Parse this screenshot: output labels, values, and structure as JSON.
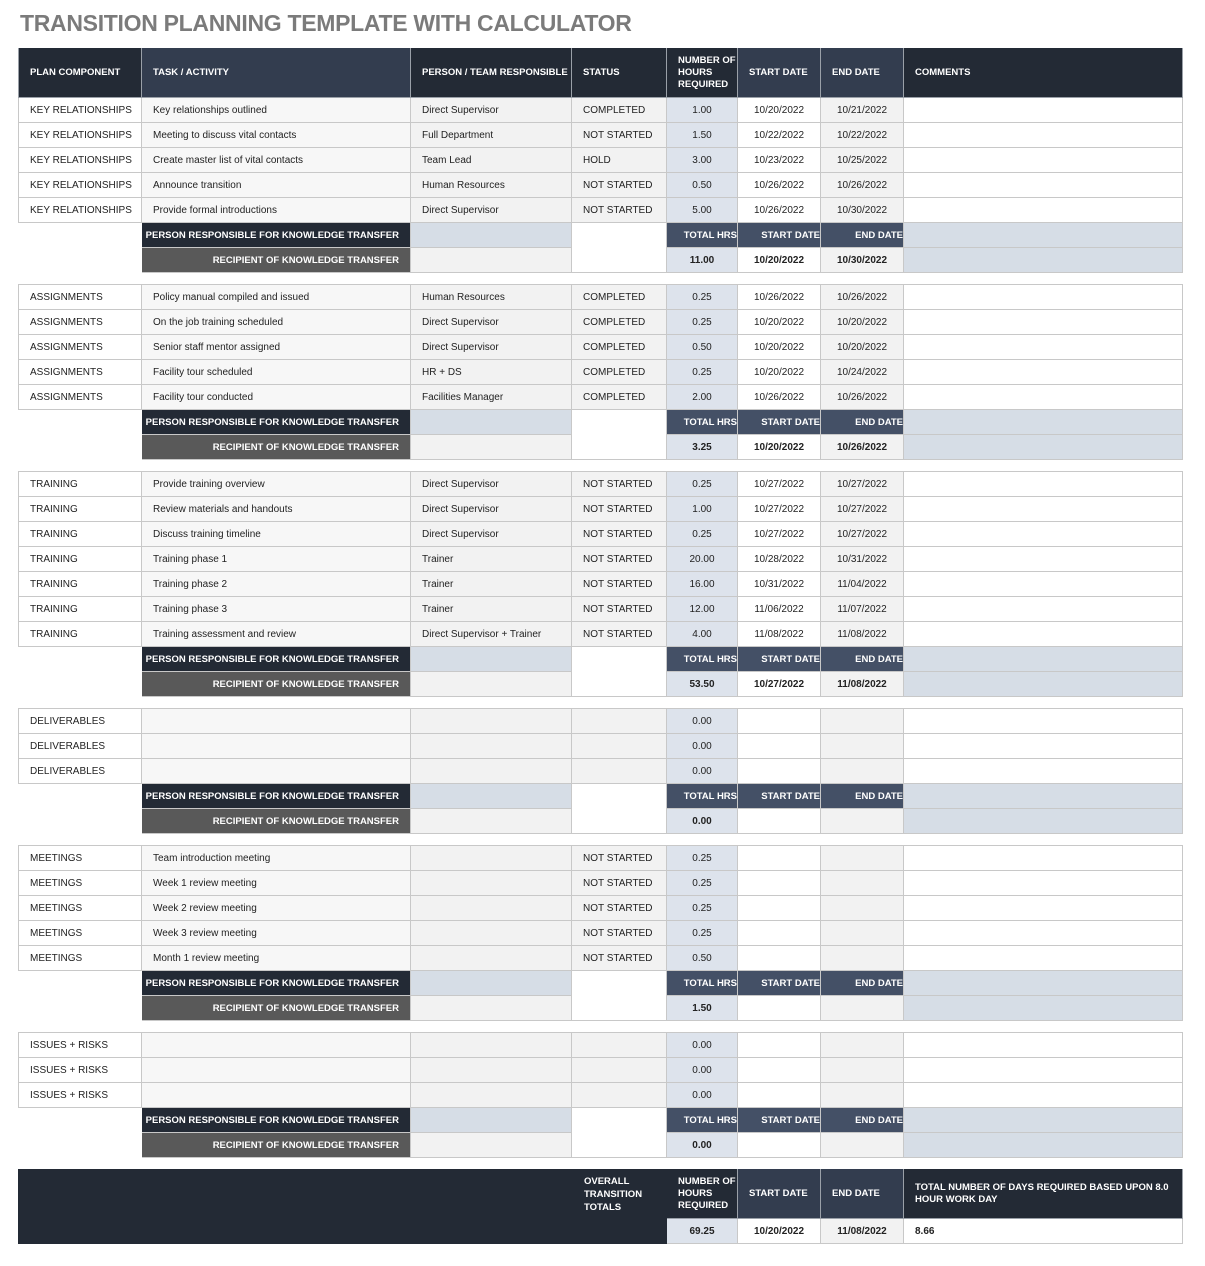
{
  "title": "TRANSITION PLANNING TEMPLATE WITH CALCULATOR",
  "headers": [
    "PLAN COMPONENT",
    "TASK / ACTIVITY",
    "PERSON / TEAM RESPONSIBLE",
    "STATUS",
    "NUMBER OF HOURS REQUIRED",
    "START DATE",
    "END DATE",
    "COMMENTS"
  ],
  "summary_labels": {
    "person": "PERSON RESPONSIBLE FOR KNOWLEDGE TRANSFER",
    "recipient": "RECIPIENT OF KNOWLEDGE TRANSFER",
    "total_hrs": "TOTAL HRS",
    "start": "START DATE",
    "end": "END DATE"
  },
  "sections": [
    {
      "rows": [
        [
          "KEY RELATIONSHIPS",
          "Key relationships outlined",
          "Direct Supervisor",
          "COMPLETED",
          "1.00",
          "10/20/2022",
          "10/21/2022",
          ""
        ],
        [
          "KEY RELATIONSHIPS",
          "Meeting to discuss vital contacts",
          "Full Department",
          "NOT STARTED",
          "1.50",
          "10/22/2022",
          "10/22/2022",
          ""
        ],
        [
          "KEY RELATIONSHIPS",
          "Create master list of vital contacts",
          "Team Lead",
          "HOLD",
          "3.00",
          "10/23/2022",
          "10/25/2022",
          ""
        ],
        [
          "KEY RELATIONSHIPS",
          "Announce transition",
          "Human Resources",
          "NOT STARTED",
          "0.50",
          "10/26/2022",
          "10/26/2022",
          ""
        ],
        [
          "KEY RELATIONSHIPS",
          "Provide formal introductions",
          "Direct Supervisor",
          "NOT STARTED",
          "5.00",
          "10/26/2022",
          "10/30/2022",
          ""
        ]
      ],
      "total": {
        "hours": "11.00",
        "start": "10/20/2022",
        "end": "10/30/2022"
      }
    },
    {
      "rows": [
        [
          "ASSIGNMENTS",
          "Policy manual compiled and issued",
          "Human Resources",
          "COMPLETED",
          "0.25",
          "10/26/2022",
          "10/26/2022",
          ""
        ],
        [
          "ASSIGNMENTS",
          "On the job training scheduled",
          "Direct Supervisor",
          "COMPLETED",
          "0.25",
          "10/20/2022",
          "10/20/2022",
          ""
        ],
        [
          "ASSIGNMENTS",
          "Senior staff mentor assigned",
          "Direct Supervisor",
          "COMPLETED",
          "0.50",
          "10/20/2022",
          "10/20/2022",
          ""
        ],
        [
          "ASSIGNMENTS",
          "Facility tour scheduled",
          "HR + DS",
          "COMPLETED",
          "0.25",
          "10/20/2022",
          "10/24/2022",
          ""
        ],
        [
          "ASSIGNMENTS",
          "Facility tour conducted",
          "Facilities Manager",
          "COMPLETED",
          "2.00",
          "10/26/2022",
          "10/26/2022",
          ""
        ]
      ],
      "total": {
        "hours": "3.25",
        "start": "10/20/2022",
        "end": "10/26/2022"
      }
    },
    {
      "rows": [
        [
          "TRAINING",
          "Provide training overview",
          "Direct Supervisor",
          "NOT STARTED",
          "0.25",
          "10/27/2022",
          "10/27/2022",
          ""
        ],
        [
          "TRAINING",
          "Review materials and handouts",
          "Direct Supervisor",
          "NOT STARTED",
          "1.00",
          "10/27/2022",
          "10/27/2022",
          ""
        ],
        [
          "TRAINING",
          "Discuss training timeline",
          "Direct Supervisor",
          "NOT STARTED",
          "0.25",
          "10/27/2022",
          "10/27/2022",
          ""
        ],
        [
          "TRAINING",
          "Training phase 1",
          "Trainer",
          "NOT STARTED",
          "20.00",
          "10/28/2022",
          "10/31/2022",
          ""
        ],
        [
          "TRAINING",
          "Training phase 2",
          "Trainer",
          "NOT STARTED",
          "16.00",
          "10/31/2022",
          "11/04/2022",
          ""
        ],
        [
          "TRAINING",
          "Training phase 3",
          "Trainer",
          "NOT STARTED",
          "12.00",
          "11/06/2022",
          "11/07/2022",
          ""
        ],
        [
          "TRAINING",
          "Training assessment and review",
          "Direct Supervisor + Trainer",
          "NOT STARTED",
          "4.00",
          "11/08/2022",
          "11/08/2022",
          ""
        ]
      ],
      "total": {
        "hours": "53.50",
        "start": "10/27/2022",
        "end": "11/08/2022"
      }
    },
    {
      "rows": [
        [
          "DELIVERABLES",
          "",
          "",
          "",
          "0.00",
          "",
          "",
          ""
        ],
        [
          "DELIVERABLES",
          "",
          "",
          "",
          "0.00",
          "",
          "",
          ""
        ],
        [
          "DELIVERABLES",
          "",
          "",
          "",
          "0.00",
          "",
          "",
          ""
        ]
      ],
      "total": {
        "hours": "0.00",
        "start": "",
        "end": ""
      }
    },
    {
      "rows": [
        [
          "MEETINGS",
          "Team introduction meeting",
          "",
          "NOT STARTED",
          "0.25",
          "",
          "",
          ""
        ],
        [
          "MEETINGS",
          "Week 1 review meeting",
          "",
          "NOT STARTED",
          "0.25",
          "",
          "",
          ""
        ],
        [
          "MEETINGS",
          "Week 2 review meeting",
          "",
          "NOT STARTED",
          "0.25",
          "",
          "",
          ""
        ],
        [
          "MEETINGS",
          "Week 3 review meeting",
          "",
          "NOT STARTED",
          "0.25",
          "",
          "",
          ""
        ],
        [
          "MEETINGS",
          "Month 1 review meeting",
          "",
          "NOT STARTED",
          "0.50",
          "",
          "",
          ""
        ]
      ],
      "total": {
        "hours": "1.50",
        "start": "",
        "end": ""
      }
    },
    {
      "rows": [
        [
          "ISSUES + RISKS",
          "",
          "",
          "",
          "0.00",
          "",
          "",
          ""
        ],
        [
          "ISSUES + RISKS",
          "",
          "",
          "",
          "0.00",
          "",
          "",
          ""
        ],
        [
          "ISSUES + RISKS",
          "",
          "",
          "",
          "0.00",
          "",
          "",
          ""
        ]
      ],
      "total": {
        "hours": "0.00",
        "start": "",
        "end": ""
      }
    }
  ],
  "overall": {
    "label": "OVERALL TRANSITION TOTALS",
    "hours_label": "NUMBER OF HOURS REQUIRED",
    "start_label": "START DATE",
    "end_label": "END DATE",
    "days_label": "TOTAL NUMBER OF DAYS REQUIRED BASED UPON 8.0 HOUR WORK DAY",
    "hours": "69.25",
    "start": "10/20/2022",
    "end": "11/08/2022",
    "days": "8.66"
  }
}
